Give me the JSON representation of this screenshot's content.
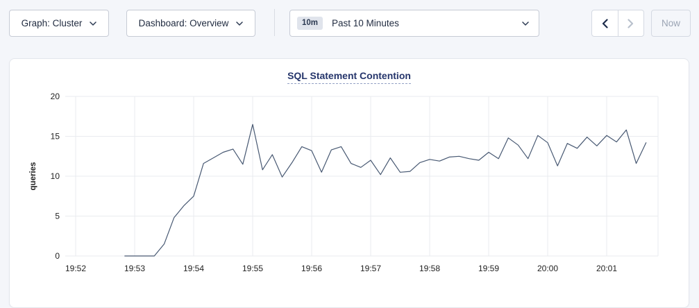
{
  "toolbar": {
    "graph_dropdown": {
      "label": "Graph: Cluster"
    },
    "dashboard_dropdown": {
      "label": "Dashboard: Overview"
    },
    "time_range": {
      "badge": "10m",
      "label": "Past 10 Minutes"
    },
    "now_button_label": "Now"
  },
  "chart": {
    "title": "SQL Statement Contention"
  },
  "colors": {
    "line": "#475872",
    "grid": "#e9ebef",
    "title": "#25356b",
    "tick_text": "#1f1f1f",
    "page_bg": "#f4f6fa",
    "card_bg": "#ffffff"
  },
  "chart_data": {
    "type": "line",
    "title": "SQL Statement Contention",
    "xlabel": "",
    "ylabel": "queries",
    "ylim": [
      0,
      20
    ],
    "yticks": [
      0,
      5,
      10,
      15,
      20
    ],
    "xticks": [
      "19:52",
      "19:53",
      "19:54",
      "19:55",
      "19:56",
      "19:57",
      "19:58",
      "19:59",
      "20:00",
      "20:01"
    ],
    "grid": true,
    "legend_position": "none",
    "series": [
      {
        "name": "queries",
        "x": [
          "19:52:50",
          "19:53:00",
          "19:53:10",
          "19:53:20",
          "19:53:30",
          "19:53:40",
          "19:53:50",
          "19:54:00",
          "19:54:10",
          "19:54:20",
          "19:54:30",
          "19:54:40",
          "19:54:50",
          "19:55:00",
          "19:55:10",
          "19:55:20",
          "19:55:30",
          "19:55:40",
          "19:55:50",
          "19:56:00",
          "19:56:10",
          "19:56:20",
          "19:56:30",
          "19:56:40",
          "19:56:50",
          "19:57:00",
          "19:57:10",
          "19:57:20",
          "19:57:30",
          "19:57:40",
          "19:57:50",
          "19:58:00",
          "19:58:10",
          "19:58:20",
          "19:58:30",
          "19:58:40",
          "19:58:50",
          "19:59:00",
          "19:59:10",
          "19:59:20",
          "19:59:30",
          "19:59:40",
          "19:59:50",
          "20:00:00",
          "20:00:10",
          "20:00:20",
          "20:00:30",
          "20:00:40",
          "20:00:50",
          "20:01:00",
          "20:01:10",
          "20:01:20",
          "20:01:30",
          "20:01:40"
        ],
        "y": [
          0,
          0,
          0,
          0,
          1.5,
          4.8,
          6.3,
          7.5,
          11.6,
          12.3,
          13.0,
          13.4,
          11.5,
          16.5,
          10.8,
          12.7,
          9.9,
          11.7,
          13.7,
          13.2,
          10.5,
          13.3,
          13.7,
          11.6,
          11.1,
          12.0,
          10.2,
          12.3,
          10.5,
          10.6,
          11.7,
          12.1,
          11.9,
          12.4,
          12.5,
          12.2,
          12.0,
          13.0,
          12.2,
          14.8,
          13.9,
          12.2,
          15.1,
          14.2,
          11.3,
          14.1,
          13.5,
          14.9,
          13.8,
          15.1,
          14.3,
          15.8,
          11.6,
          14.2
        ]
      }
    ]
  }
}
